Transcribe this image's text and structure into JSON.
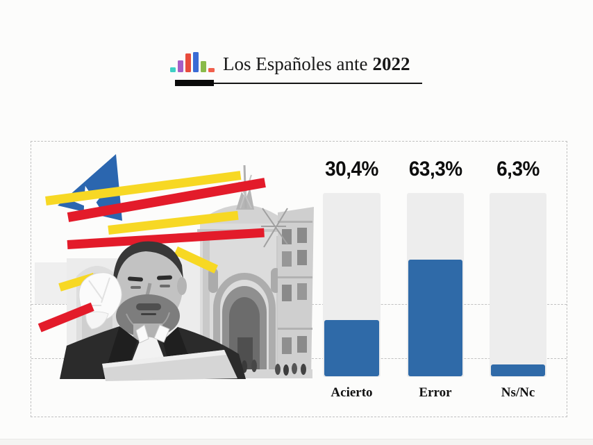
{
  "page": {
    "background": "#fcfcfb"
  },
  "header": {
    "title_regular": "Los Españoles ante",
    "title_bold": "2022",
    "logo_bars": [
      {
        "color": "#3fd0c5",
        "height": 7,
        "width": 8
      },
      {
        "color": "#a55ec6",
        "height": 17,
        "width": 8
      },
      {
        "color": "#e84b3c",
        "height": 27,
        "width": 8
      },
      {
        "color": "#3a6bd5",
        "height": 29,
        "width": 8
      },
      {
        "color": "#8aba4a",
        "height": 16,
        "width": 8
      },
      {
        "color": "#f0604d",
        "height": 6,
        "width": 9
      }
    ]
  },
  "chart_data": {
    "type": "bar",
    "title": "Los Españoles ante 2022",
    "categories": [
      "Acierto",
      "Error",
      "Ns/Nc"
    ],
    "values": [
      30.4,
      63.3,
      6.3
    ],
    "value_labels": [
      "30,4%",
      "63,3%",
      "6,3%"
    ],
    "ylim": [
      0,
      100
    ],
    "bar_color": "#2f6aa8",
    "track_color": "#ededed",
    "grid": "off",
    "legend": "none"
  },
  "collage": {
    "flag_blue": "#2b66af",
    "stripe_yellow": "#f7d824",
    "stripe_red": "#e31b2a",
    "star_white": "#ffffff"
  }
}
